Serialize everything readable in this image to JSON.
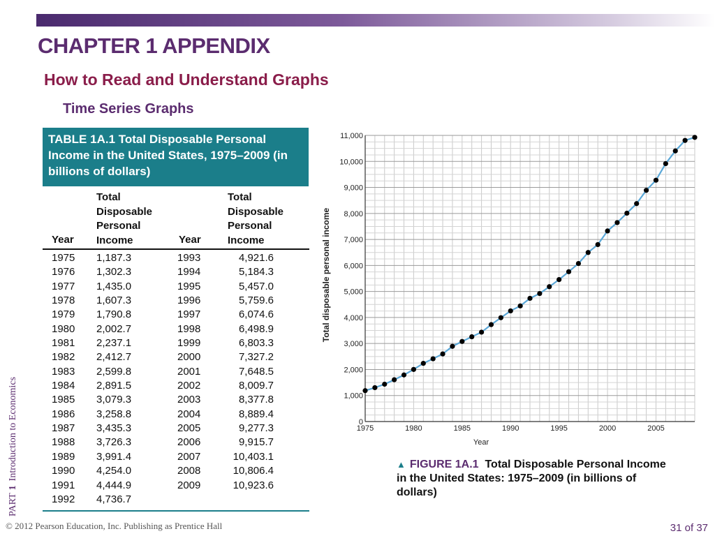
{
  "slide": {
    "title": "CHAPTER 1 APPENDIX",
    "subtitle": "How to Read and Understand Graphs",
    "section": "Time Series Graphs",
    "side_part": "PART",
    "side_num": "1",
    "side_text": "Introduction to Economics",
    "footer": "© 2012 Pearson Education, Inc. Publishing as Prentice Hall",
    "page": "31",
    "page_sep": "of",
    "page_total": "37"
  },
  "table": {
    "title": "TABLE 1A.1  Total Disposable Personal Income in the United States, 1975–2009 (in billions of dollars)",
    "col_year": "Year",
    "col_income_lines": [
      "Total",
      "Disposable",
      "Personal",
      "Income"
    ],
    "left": {
      "years": [
        "1975",
        "1976",
        "1977",
        "1978",
        "1979",
        "1980",
        "1981",
        "1982",
        "1983",
        "1984",
        "1985",
        "1986",
        "1987",
        "1988",
        "1989",
        "1990",
        "1991",
        "1992"
      ],
      "incomes": [
        "1,187.3",
        "1,302.3",
        "1,435.0",
        "1,607.3",
        "1,790.8",
        "2,002.7",
        "2,237.1",
        "2,412.7",
        "2,599.8",
        "2,891.5",
        "3,079.3",
        "3,258.8",
        "3,435.3",
        "3,726.3",
        "3,991.4",
        "4,254.0",
        "4,444.9",
        "4,736.7"
      ]
    },
    "right": {
      "years": [
        "1993",
        "1994",
        "1995",
        "1996",
        "1997",
        "1998",
        "1999",
        "2000",
        "2001",
        "2002",
        "2003",
        "2004",
        "2005",
        "2006",
        "2007",
        "2008",
        "2009"
      ],
      "incomes": [
        "4,921.6",
        "5,184.3",
        "5,457.0",
        "5,759.6",
        "6,074.6",
        "6,498.9",
        "6,803.3",
        "7,327.2",
        "7,648.5",
        "8,009.7",
        "8,377.8",
        "8,889.4",
        "9,277.3",
        "9,915.7",
        "10,403.1",
        "10,806.4",
        "10,923.6"
      ]
    }
  },
  "caption": {
    "marker": "▲",
    "figure": "FIGURE 1A.1",
    "text": "Total Disposable Personal Income in the United States: 1975–2009 (in billions of dollars)"
  },
  "chart_data": {
    "type": "line",
    "title": "",
    "xlabel": "Year",
    "ylabel": "Total disposable personal income",
    "x": [
      1975,
      1976,
      1977,
      1978,
      1979,
      1980,
      1981,
      1982,
      1983,
      1984,
      1985,
      1986,
      1987,
      1988,
      1989,
      1990,
      1991,
      1992,
      1993,
      1994,
      1995,
      1996,
      1997,
      1998,
      1999,
      2000,
      2001,
      2002,
      2003,
      2004,
      2005,
      2006,
      2007,
      2008,
      2009
    ],
    "values": [
      1187.3,
      1302.3,
      1435.0,
      1607.3,
      1790.8,
      2002.7,
      2237.1,
      2412.7,
      2599.8,
      2891.5,
      3079.3,
      3258.8,
      3435.3,
      3726.3,
      3991.4,
      4254.0,
      4444.9,
      4736.7,
      4921.6,
      5184.3,
      5457.0,
      5759.6,
      6074.6,
      6498.9,
      6803.3,
      7327.2,
      7648.5,
      8009.7,
      8377.8,
      8889.4,
      9277.3,
      9915.7,
      10403.1,
      10806.4,
      10923.6
    ],
    "xlim": [
      1975,
      2009
    ],
    "ylim": [
      0,
      11000
    ],
    "yticks": [
      "0",
      "1,000",
      "2,000",
      "3,000",
      "4,000",
      "5,000",
      "6,000",
      "7,000",
      "8,000",
      "9,000",
      "10,000",
      "11,000"
    ],
    "xticks": [
      "1975",
      "1980",
      "1985",
      "1990",
      "1995",
      "2000",
      "2005"
    ],
    "grid": true,
    "line_color": "#5ba8d8",
    "marker_color": "#000000"
  }
}
